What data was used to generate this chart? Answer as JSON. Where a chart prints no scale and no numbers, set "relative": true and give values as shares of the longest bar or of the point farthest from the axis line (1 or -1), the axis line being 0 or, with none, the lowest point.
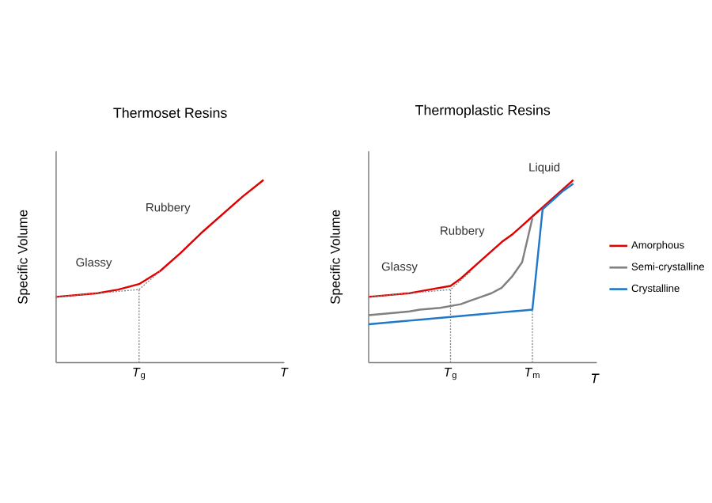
{
  "chart_data": [
    {
      "type": "line",
      "title": "Thermoset Resins",
      "ylabel": "Specific Volume",
      "relative": true,
      "categories": [
        null,
        null,
        null,
        null,
        "*T*$_{g}$",
        null,
        null,
        null,
        null,
        null,
        null,
        "*T*"
      ],
      "series": [
        {
          "color": "#7f7f7f",
          "line_style": "dotted",
          "values": [
            0.36,
            0.37,
            0.38,
            0.39,
            0.4,
            0.5,
            null,
            null,
            null,
            null,
            null,
            null
          ]
        },
        {
          "color": "#e00000",
          "values": [
            0.36,
            0.37,
            0.38,
            0.4,
            0.43,
            0.5,
            0.6,
            0.71,
            0.81,
            0.91,
            1,
            null
          ]
        }
      ],
      "ref_lines": [
        {
          "axis": "x",
          "value": "*T*$_{g}$",
          "color": "#7f7f7f",
          "line_style": "dotted"
        }
      ],
      "annotations": [
        "Glassy",
        "Rubbery"
      ]
    },
    {
      "type": "line",
      "title": "Thermoplastic Resins",
      "xlabel": "T",
      "ylabel": "Specific Volume",
      "relative": true,
      "legend": "right",
      "categories": [
        null,
        null,
        null,
        null,
        null,
        null,
        null,
        null,
        "*T*$_{g}$",
        null,
        null,
        null,
        null,
        null,
        null,
        null,
        "*T*$_{m}$",
        null,
        null,
        null,
        null
      ],
      "series": [
        {
          "color": "#7f7f7f",
          "line_style": "dotted",
          "values": [
            0.36,
            0.365,
            0.37,
            0.375,
            0.38,
            0.385,
            0.39,
            0.395,
            0.4,
            0.45,
            0.5,
            null,
            null,
            null,
            null,
            null,
            null,
            null,
            null,
            null,
            null
          ]
        },
        {
          "name": "Amorphous",
          "color": "#e00000",
          "values": [
            0.36,
            0.365,
            0.37,
            0.375,
            0.38,
            0.39,
            0.4,
            0.41,
            0.42,
            0.46,
            0.51,
            0.56,
            0.61,
            0.66,
            0.7,
            0.75,
            0.8,
            0.85,
            0.9,
            0.95,
            1
          ]
        },
        {
          "name": "Semi-crystalline",
          "color": "#808080",
          "values": [
            0.26,
            0.265,
            0.27,
            0.275,
            0.28,
            0.29,
            0.295,
            0.3,
            0.31,
            0.32,
            0.34,
            0.36,
            0.38,
            0.41,
            0.47,
            0.55,
            0.79,
            null,
            null,
            null,
            null
          ]
        },
        {
          "name": "Crystalline",
          "color": "#1f78c8",
          "values": [
            0.21,
            0.215,
            0.22,
            0.225,
            0.23,
            0.235,
            0.24,
            0.245,
            0.25,
            0.255,
            0.26,
            0.265,
            0.27,
            0.275,
            0.28,
            0.285,
            0.29,
            0.84,
            0.89,
            0.94,
            0.98
          ]
        }
      ],
      "ref_lines": [
        {
          "axis": "x",
          "value": "*T*$_{g}$",
          "color": "#7f7f7f",
          "line_style": "dotted"
        },
        {
          "axis": "x",
          "value": "*T*$_{m}$",
          "color": "#7f7f7f",
          "line_style": "dotted"
        }
      ],
      "annotations": [
        "Glassy",
        "Rubbery",
        "Liquid"
      ]
    }
  ]
}
